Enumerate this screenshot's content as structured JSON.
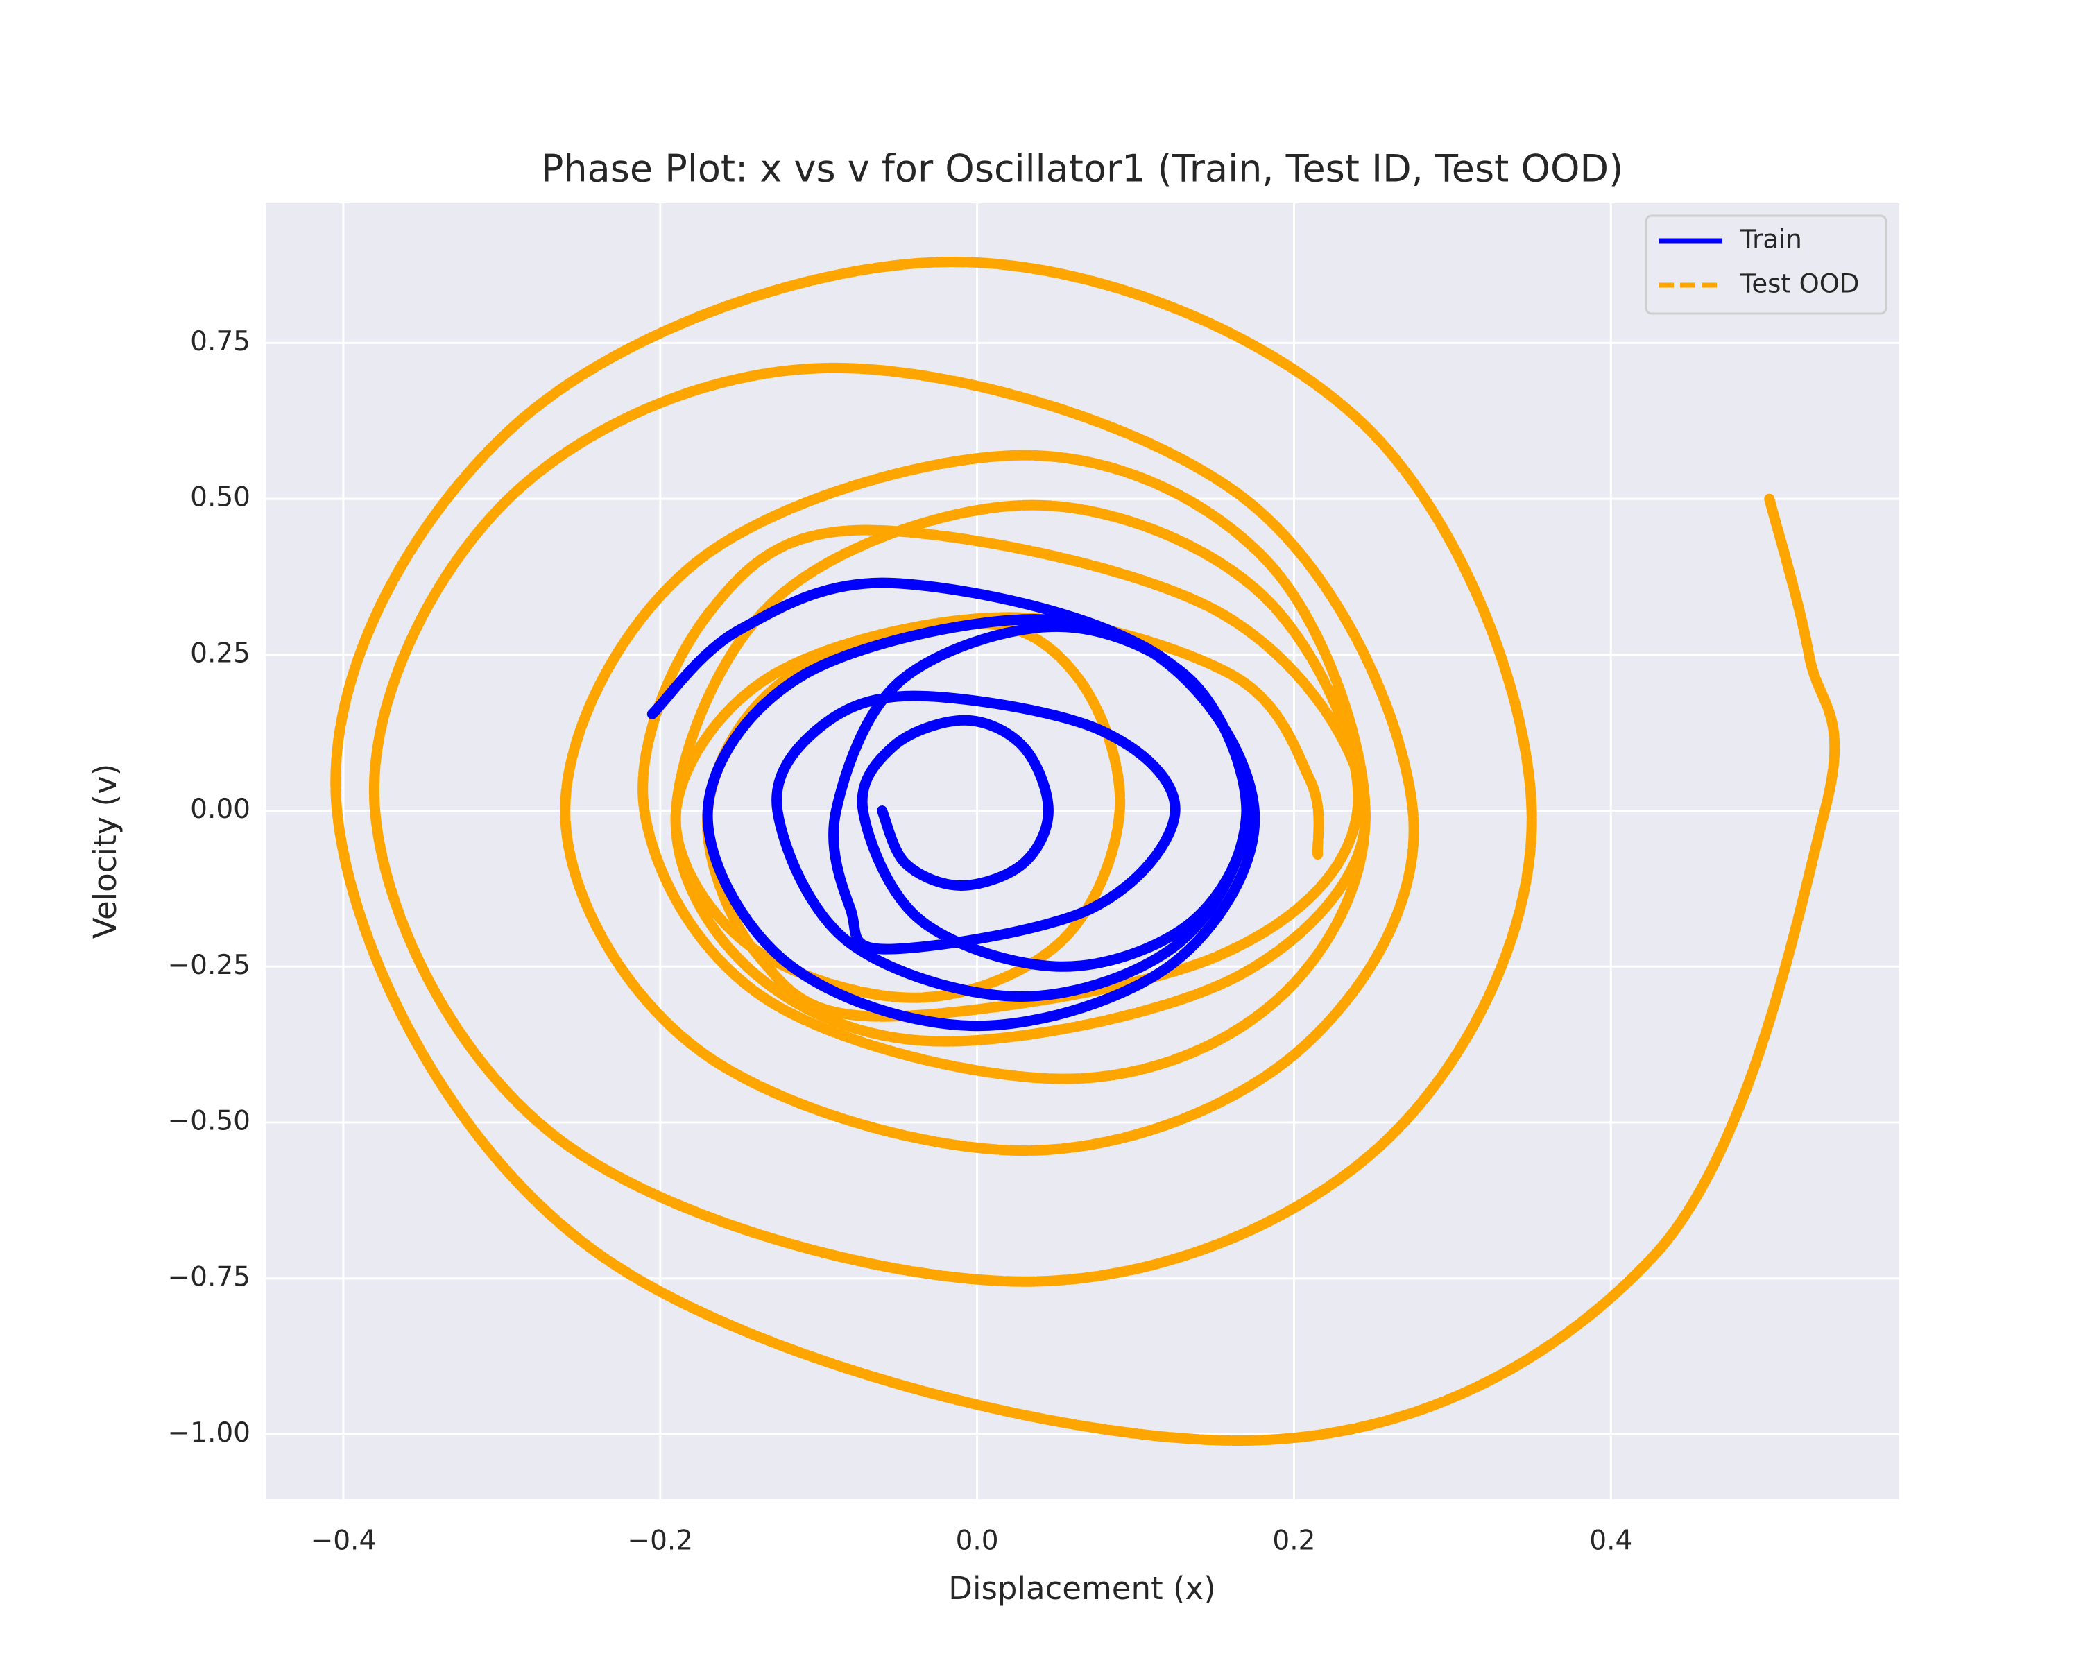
{
  "chart_data": {
    "type": "line",
    "title": "Phase Plot: x vs v for Oscillator1 (Train, Test ID, Test OOD)",
    "xlabel": "Displacement (x)",
    "ylabel": "Velocity (v)",
    "xlim": [
      -0.449,
      0.582
    ],
    "ylim": [
      -1.104,
      0.974
    ],
    "xticks": [
      {
        "value": -0.4,
        "label": "−0.4"
      },
      {
        "value": -0.2,
        "label": "−0.2"
      },
      {
        "value": 0.0,
        "label": "0.0"
      },
      {
        "value": 0.2,
        "label": "0.2"
      },
      {
        "value": 0.4,
        "label": "0.4"
      }
    ],
    "yticks": [
      {
        "value": -1.0,
        "label": "−1.00"
      },
      {
        "value": -0.75,
        "label": "−0.75"
      },
      {
        "value": -0.5,
        "label": "−0.50"
      },
      {
        "value": -0.25,
        "label": "−0.25"
      },
      {
        "value": 0.0,
        "label": "0.00"
      },
      0.25,
      {
        "value": 0.5,
        "label": "0.50"
      },
      0.75
    ],
    "grid": true,
    "legend_loc": "upper right",
    "series": [
      {
        "name": "Train",
        "color": "#0000ff",
        "linestyle": "solid",
        "x": [
          -0.205,
          -0.15,
          -0.053,
          0.108,
          0.175,
          0.124,
          0.0,
          -0.12,
          -0.17,
          -0.11,
          0.036,
          0.131,
          0.17,
          0.128,
          0.028,
          -0.081,
          -0.126,
          -0.101,
          -0.04,
          0.077,
          0.125,
          0.072,
          -0.057,
          -0.08,
          -0.089,
          -0.048,
          0.05,
          0.135,
          0.17,
          0.136,
          0.054,
          -0.035,
          -0.072,
          -0.053,
          -0.008,
          0.029,
          0.045,
          0.029,
          -0.01,
          -0.045,
          -0.06
        ],
        "y": [
          0.155,
          0.29,
          0.365,
          0.258,
          0.0,
          -0.244,
          -0.345,
          -0.244,
          0.0,
          0.217,
          0.307,
          0.217,
          0.0,
          -0.211,
          -0.298,
          -0.211,
          0.0,
          0.13,
          0.184,
          0.13,
          0.0,
          -0.157,
          -0.222,
          -0.157,
          0.0,
          0.209,
          0.295,
          0.209,
          0.0,
          -0.177,
          -0.25,
          -0.177,
          0.0,
          0.103,
          0.145,
          0.103,
          0.0,
          -0.085,
          -0.12,
          -0.085,
          0.0
        ]
      },
      {
        "name": "Test OOD",
        "color": "#ffa500",
        "linestyle": "dashed",
        "x": [
          0.5,
          0.525,
          0.535,
          0.427,
          0.165,
          -0.237,
          -0.404,
          -0.29,
          -0.015,
          0.243,
          0.35,
          0.256,
          0.03,
          -0.26,
          -0.38,
          -0.295,
          -0.09,
          0.168,
          0.275,
          0.203,
          0.03,
          -0.175,
          -0.26,
          -0.175,
          0.03,
          0.182,
          0.245,
          0.189,
          0.055,
          -0.132,
          -0.21,
          -0.169,
          -0.07,
          0.153,
          0.245,
          0.167,
          -0.02,
          -0.14,
          -0.19,
          -0.124,
          0.035,
          0.18,
          0.24,
          0.152,
          -0.06,
          -0.138,
          -0.17,
          -0.12,
          0.0,
          0.064,
          0.09,
          0.052,
          -0.04,
          -0.146,
          -0.19,
          -0.128,
          0.02,
          0.16,
          0.21,
          0.215
        ],
        "y": [
          0.5,
          0.25,
          0.0,
          -0.714,
          -1.01,
          -0.714,
          0.0,
          0.622,
          0.88,
          0.622,
          0.0,
          -0.534,
          -0.755,
          -0.534,
          0.0,
          0.502,
          0.71,
          0.502,
          0.0,
          -0.385,
          -0.545,
          -0.385,
          0.0,
          0.403,
          0.57,
          0.403,
          0.0,
          -0.304,
          -0.43,
          -0.304,
          0.0,
          0.318,
          0.45,
          0.318,
          0.0,
          -0.262,
          -0.37,
          -0.262,
          0.0,
          0.346,
          0.49,
          0.346,
          0.0,
          -0.233,
          -0.33,
          -0.233,
          0.0,
          0.212,
          0.3,
          0.212,
          0.0,
          -0.212,
          -0.3,
          -0.212,
          0.0,
          0.219,
          0.31,
          0.219,
          0.05,
          -0.07
        ]
      }
    ]
  }
}
